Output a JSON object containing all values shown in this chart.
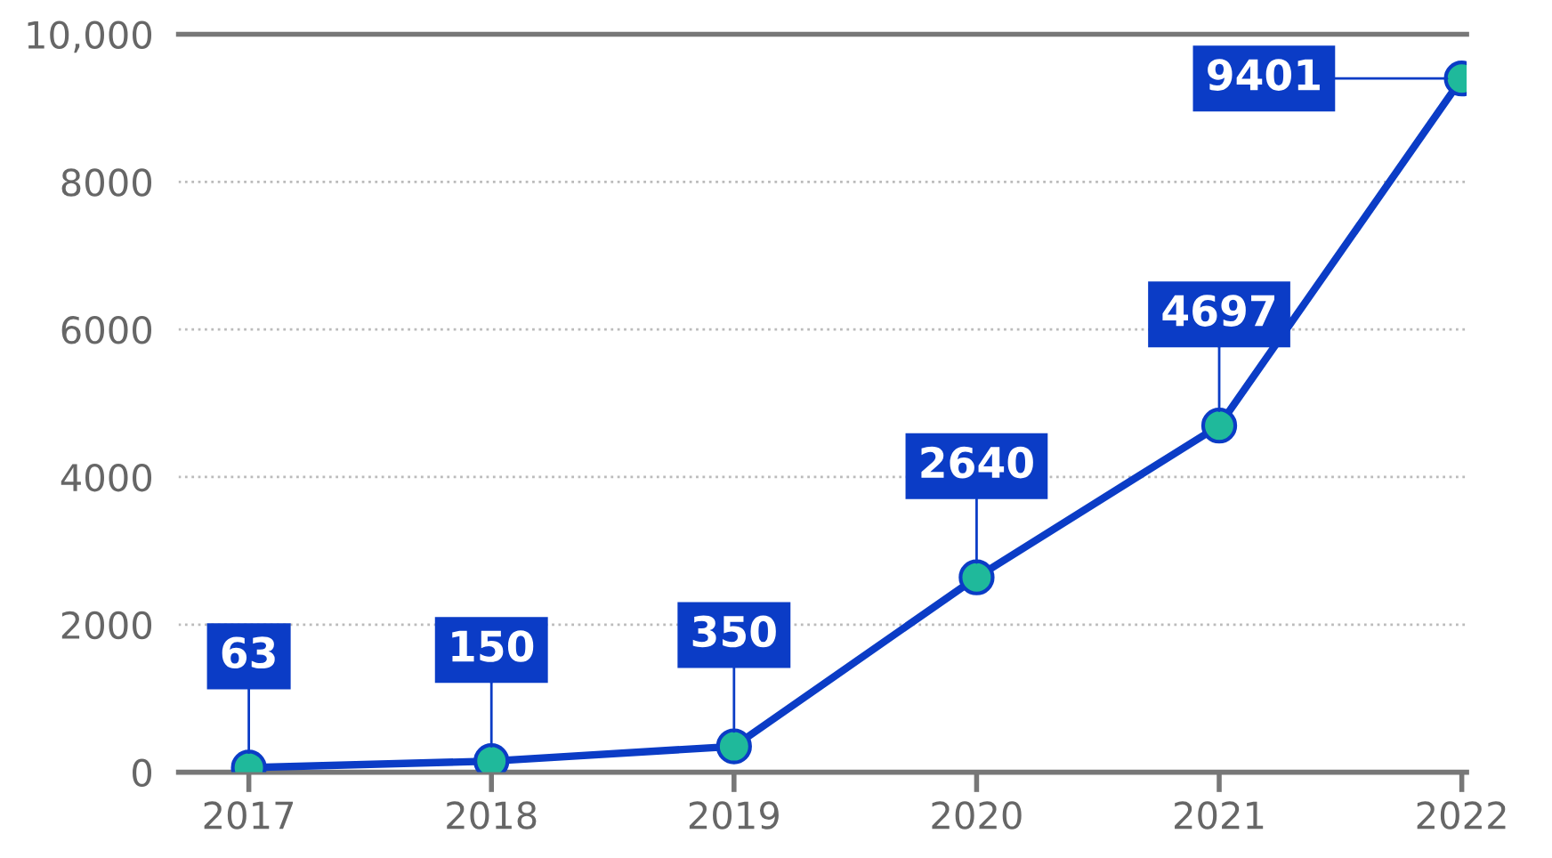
{
  "chart_data": {
    "type": "line",
    "categories": [
      "2017",
      "2018",
      "2019",
      "2020",
      "2021",
      "2022"
    ],
    "series": [
      {
        "color": "#0b3cc6",
        "values": [
          63,
          150,
          350,
          2640,
          4697,
          9401
        ]
      }
    ],
    "ylim": [
      0,
      10000
    ],
    "yticks": [
      0,
      2000,
      4000,
      6000,
      8000,
      {
        "value": 10000,
        "label": "10,000"
      }
    ],
    "grid": "y",
    "marker": "circle",
    "line_style": "solid",
    "data_labels": true
  }
}
